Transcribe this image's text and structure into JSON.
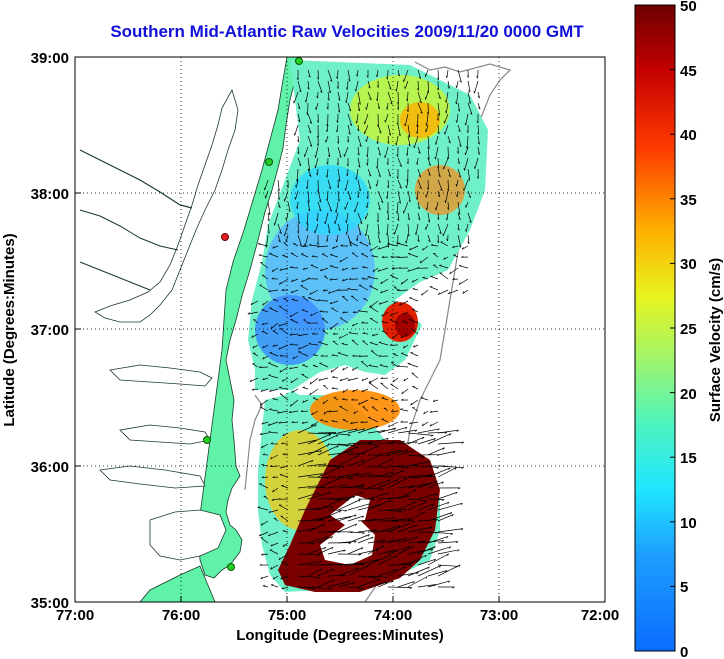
{
  "title": "Southern Mid-Atlantic Raw Velocities 2009/11/20 0000 GMT",
  "axes": {
    "xlabel": "Longitude (Degrees:Minutes)",
    "ylabel": "Latitude (Degrees:Minutes)",
    "x_ticks": [
      "77:00",
      "76:00",
      "75:00",
      "74:00",
      "73:00",
      "72:00"
    ],
    "y_ticks": [
      "39:00",
      "38:00",
      "37:00",
      "36:00",
      "35:00"
    ],
    "x_range_deg": [
      -77,
      -72
    ],
    "y_range_deg": [
      35,
      39
    ]
  },
  "colorbar": {
    "label": "Surface Velocity (cm/s)",
    "ticks": [
      "50",
      "45",
      "40",
      "35",
      "30",
      "25",
      "20",
      "15",
      "10",
      "5",
      "0"
    ],
    "range": [
      0,
      50
    ]
  },
  "colors": {
    "land": "#5ff2a8",
    "title": "#1010d8",
    "station": "#22cc22",
    "station_highlight": "#e02020"
  }
}
